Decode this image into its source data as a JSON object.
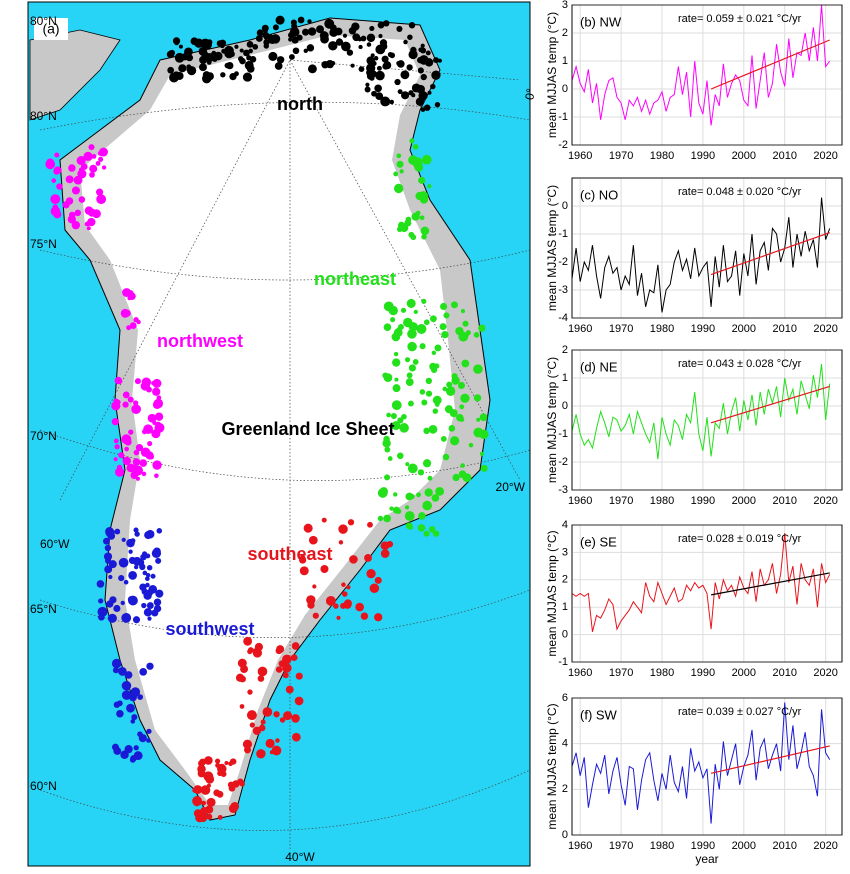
{
  "map": {
    "panel": "(a)",
    "regions": [
      "north",
      "northeast",
      "northwest",
      "Greenland Ice Sheet",
      "southeast",
      "southwest"
    ],
    "graticule": [
      "80°N",
      "80°N",
      "75°N",
      "70°N",
      "65°N",
      "60°N",
      "60°W",
      "40°W",
      "20°W",
      "0°"
    ]
  },
  "chart_data": [
    {
      "type": "line",
      "title": "(b) NW",
      "annotation": "rate= 0.059 ± 0.021 °C/yr",
      "ylabel": "mean MJJAS temp (°C)",
      "color": "#ff00ff",
      "xlim": [
        1958,
        2024
      ],
      "xticks": [
        1960,
        1970,
        1980,
        1990,
        2000,
        2010,
        2020
      ],
      "ylim": [
        -2,
        3
      ],
      "yticks": [
        -2,
        -1,
        0,
        1,
        2,
        3
      ],
      "grid": true,
      "x": [
        1958,
        1959,
        1960,
        1961,
        1962,
        1963,
        1964,
        1965,
        1966,
        1967,
        1968,
        1969,
        1970,
        1971,
        1972,
        1973,
        1974,
        1975,
        1976,
        1977,
        1978,
        1979,
        1980,
        1981,
        1982,
        1983,
        1984,
        1985,
        1986,
        1987,
        1988,
        1989,
        1990,
        1991,
        1992,
        1993,
        1994,
        1995,
        1996,
        1997,
        1998,
        1999,
        2000,
        2001,
        2002,
        2003,
        2004,
        2005,
        2006,
        2007,
        2008,
        2009,
        2010,
        2011,
        2012,
        2013,
        2014,
        2015,
        2016,
        2017,
        2018,
        2019,
        2020,
        2021
      ],
      "values": [
        0.3,
        0.8,
        0.2,
        -0.1,
        0.7,
        -0.5,
        0.2,
        -1.1,
        -0.2,
        0.3,
        0.4,
        -0.3,
        -0.5,
        -1.1,
        -0.4,
        -0.6,
        -0.3,
        -0.8,
        -0.4,
        -0.9,
        -0.5,
        -0.4,
        -0.1,
        -0.8,
        -0.3,
        -0.2,
        0.8,
        -0.2,
        0.6,
        -1.0,
        1.0,
        -0.5,
        -0.9,
        0.3,
        -1.3,
        -0.2,
        -0.6,
        0.9,
        -0.3,
        0.2,
        0.5,
        0.3,
        -0.4,
        -0.6,
        1.2,
        -0.7,
        0.3,
        1.3,
        -0.3,
        0.2,
        1.6,
        0.6,
        0.1,
        1.8,
        0.4,
        1.3,
        1.2,
        2.0,
        1.0,
        2.2,
        1.0,
        3.0,
        0.8,
        1.0
      ],
      "trend": {
        "x": [
          1992,
          2021
        ],
        "values": [
          0.0,
          1.75
        ],
        "color": "#e8141c"
      }
    },
    {
      "type": "line",
      "title": "(c) NO",
      "annotation": "rate= 0.048 ± 0.020 °C/yr",
      "ylabel": "mean MJJAS temp (°C)",
      "color": "#000000",
      "xlim": [
        1958,
        2024
      ],
      "xticks": [
        1960,
        1970,
        1980,
        1990,
        2000,
        2010,
        2020
      ],
      "ylim": [
        -4,
        1
      ],
      "yticks": [
        -4,
        -3,
        -2,
        -1,
        0
      ],
      "grid": true,
      "x": [
        1958,
        1959,
        1960,
        1961,
        1962,
        1963,
        1964,
        1965,
        1966,
        1967,
        1968,
        1969,
        1970,
        1971,
        1972,
        1973,
        1974,
        1975,
        1976,
        1977,
        1978,
        1979,
        1980,
        1981,
        1982,
        1983,
        1984,
        1985,
        1986,
        1987,
        1988,
        1989,
        1990,
        1991,
        1992,
        1993,
        1994,
        1995,
        1996,
        1997,
        1998,
        1999,
        2000,
        2001,
        2002,
        2003,
        2004,
        2005,
        2006,
        2007,
        2008,
        2009,
        2010,
        2011,
        2012,
        2013,
        2014,
        2015,
        2016,
        2017,
        2018,
        2019,
        2020,
        2021
      ],
      "values": [
        -2.6,
        -1.5,
        -2.7,
        -2.0,
        -2.3,
        -1.4,
        -2.5,
        -3.3,
        -2.2,
        -1.8,
        -2.4,
        -2.2,
        -3.0,
        -2.5,
        -2.8,
        -1.4,
        -3.2,
        -2.4,
        -3.6,
        -3.0,
        -3.1,
        -2.1,
        -3.8,
        -3.0,
        -2.8,
        -2.0,
        -1.6,
        -2.3,
        -1.9,
        -2.6,
        -1.5,
        -2.5,
        -2.2,
        -2.0,
        -3.6,
        -1.8,
        -2.9,
        -1.4,
        -2.7,
        -2.5,
        -1.6,
        -3.2,
        -1.7,
        -2.5,
        -1.0,
        -2.8,
        -1.6,
        -1.3,
        -2.3,
        -0.8,
        -1.0,
        -2.0,
        -1.5,
        -0.4,
        -2.2,
        -1.0,
        -1.8,
        -0.9,
        -1.6,
        -1.2,
        -2.2,
        0.3,
        -1.2,
        -0.8
      ],
      "trend": {
        "x": [
          1992,
          2021
        ],
        "values": [
          -2.45,
          -0.95
        ],
        "color": "#e8141c"
      }
    },
    {
      "type": "line",
      "title": "(d) NE",
      "annotation": "rate= 0.043 ± 0.028 °C/yr",
      "ylabel": "mean MJJAS temp (°C)",
      "color": "#22e01a",
      "xlim": [
        1958,
        2024
      ],
      "xticks": [
        1960,
        1970,
        1980,
        1990,
        2000,
        2010,
        2020
      ],
      "ylim": [
        -3,
        2
      ],
      "yticks": [
        -3,
        -2,
        -1,
        0,
        1,
        2
      ],
      "grid": true,
      "x": [
        1958,
        1959,
        1960,
        1961,
        1962,
        1963,
        1964,
        1965,
        1966,
        1967,
        1968,
        1969,
        1970,
        1971,
        1972,
        1973,
        1974,
        1975,
        1976,
        1977,
        1978,
        1979,
        1980,
        1981,
        1982,
        1983,
        1984,
        1985,
        1986,
        1987,
        1988,
        1989,
        1990,
        1991,
        1992,
        1993,
        1994,
        1995,
        1996,
        1997,
        1998,
        1999,
        2000,
        2001,
        2002,
        2003,
        2004,
        2005,
        2006,
        2007,
        2008,
        2009,
        2010,
        2011,
        2012,
        2013,
        2014,
        2015,
        2016,
        2017,
        2018,
        2019,
        2020,
        2021
      ],
      "values": [
        -0.9,
        -0.3,
        -1.0,
        -1.4,
        -1.2,
        -1.5,
        -0.8,
        -0.2,
        -0.6,
        -1.1,
        -0.4,
        -0.5,
        -0.9,
        -0.7,
        -0.3,
        -1.0,
        -0.2,
        -0.6,
        -1.0,
        -1.3,
        -0.6,
        -1.9,
        -0.4,
        -1.0,
        -1.4,
        -0.5,
        -0.7,
        -1.2,
        -0.3,
        -0.6,
        0.5,
        -1.0,
        -1.6,
        -0.4,
        -1.8,
        -0.6,
        -0.8,
        0.1,
        -1.0,
        -0.2,
        0.3,
        -0.9,
        0.2,
        -0.5,
        0.4,
        -0.7,
        0.5,
        -0.3,
        0.6,
        0.1,
        0.7,
        -0.4,
        1.0,
        0.2,
        0.6,
        -0.3,
        0.9,
        0.4,
        -0.1,
        1.1,
        0.3,
        1.5,
        -0.5,
        0.8
      ],
      "trend": {
        "x": [
          1992,
          2021
        ],
        "values": [
          -0.6,
          0.7
        ],
        "color": "#e8141c"
      }
    },
    {
      "type": "line",
      "title": "(e) SE",
      "annotation": "rate= 0.028 ± 0.019 °C/yr",
      "ylabel": "mean MJJAS temp (°C)",
      "color": "#e8141c",
      "xlim": [
        1958,
        2024
      ],
      "xticks": [
        1960,
        1970,
        1980,
        1990,
        2000,
        2010,
        2020
      ],
      "ylim": [
        -1,
        4
      ],
      "yticks": [
        -1,
        0,
        1,
        2,
        3,
        4
      ],
      "grid": true,
      "x": [
        1958,
        1959,
        1960,
        1961,
        1962,
        1963,
        1964,
        1965,
        1966,
        1967,
        1968,
        1969,
        1970,
        1971,
        1972,
        1973,
        1974,
        1975,
        1976,
        1977,
        1978,
        1979,
        1980,
        1981,
        1982,
        1983,
        1984,
        1985,
        1986,
        1987,
        1988,
        1989,
        1990,
        1991,
        1992,
        1993,
        1994,
        1995,
        1996,
        1997,
        1998,
        1999,
        2000,
        2001,
        2002,
        2003,
        2004,
        2005,
        2006,
        2007,
        2008,
        2009,
        2010,
        2011,
        2012,
        2013,
        2014,
        2015,
        2016,
        2017,
        2018,
        2019,
        2020,
        2021
      ],
      "values": [
        1.5,
        1.4,
        1.5,
        1.4,
        1.5,
        0.1,
        0.7,
        0.6,
        0.9,
        1.3,
        1.1,
        0.2,
        0.5,
        0.7,
        0.9,
        1.2,
        1.0,
        0.8,
        1.9,
        1.4,
        1.2,
        1.9,
        1.5,
        1.1,
        1.4,
        1.7,
        1.2,
        1.3,
        1.8,
        1.6,
        1.9,
        1.7,
        1.8,
        1.5,
        0.2,
        1.9,
        1.3,
        2.0,
        1.6,
        1.8,
        1.4,
        2.1,
        1.7,
        1.5,
        2.3,
        1.2,
        2.4,
        1.8,
        2.0,
        2.6,
        1.5,
        2.2,
        3.7,
        1.9,
        2.5,
        1.1,
        2.6,
        2.0,
        1.8,
        2.4,
        1.0,
        2.6,
        1.9,
        2.2
      ],
      "trend": {
        "x": [
          1992,
          2021
        ],
        "values": [
          1.45,
          2.25
        ],
        "color": "#000000"
      }
    },
    {
      "type": "line",
      "title": "(f) SW",
      "annotation": "rate= 0.039 ± 0.027 °C/yr",
      "ylabel": "mean MJJAS temp (°C)",
      "xlabel": "year",
      "color": "#1a1ad6",
      "xlim": [
        1958,
        2024
      ],
      "xticks": [
        1960,
        1970,
        1980,
        1990,
        2000,
        2010,
        2020
      ],
      "ylim": [
        0,
        6
      ],
      "yticks": [
        0,
        2,
        4,
        6
      ],
      "grid": true,
      "x": [
        1958,
        1959,
        1960,
        1961,
        1962,
        1963,
        1964,
        1965,
        1966,
        1967,
        1968,
        1969,
        1970,
        1971,
        1972,
        1973,
        1974,
        1975,
        1976,
        1977,
        1978,
        1979,
        1980,
        1981,
        1982,
        1983,
        1984,
        1985,
        1986,
        1987,
        1988,
        1989,
        1990,
        1991,
        1992,
        1993,
        1994,
        1995,
        1996,
        1997,
        1998,
        1999,
        2000,
        2001,
        2002,
        2003,
        2004,
        2005,
        2006,
        2007,
        2008,
        2009,
        2010,
        2011,
        2012,
        2013,
        2014,
        2015,
        2016,
        2017,
        2018,
        2019,
        2020,
        2021
      ],
      "values": [
        3.0,
        3.6,
        2.6,
        3.4,
        1.2,
        2.2,
        3.1,
        2.7,
        3.5,
        1.8,
        2.8,
        3.4,
        2.2,
        1.3,
        3.0,
        2.9,
        1.1,
        2.4,
        3.3,
        3.6,
        2.4,
        1.5,
        2.7,
        2.0,
        3.5,
        2.3,
        1.9,
        3.0,
        1.6,
        3.8,
        2.8,
        3.2,
        2.5,
        2.9,
        0.5,
        3.1,
        2.0,
        4.1,
        2.6,
        3.3,
        4.0,
        2.2,
        3.0,
        3.5,
        4.6,
        2.4,
        3.8,
        4.2,
        2.9,
        3.5,
        4.0,
        2.8,
        5.8,
        3.3,
        4.8,
        2.9,
        3.6,
        4.5,
        3.0,
        2.6,
        1.7,
        5.5,
        3.6,
        3.3
      ],
      "trend": {
        "x": [
          1992,
          2021
        ],
        "values": [
          2.7,
          3.9
        ],
        "color": "#e8141c"
      }
    }
  ]
}
